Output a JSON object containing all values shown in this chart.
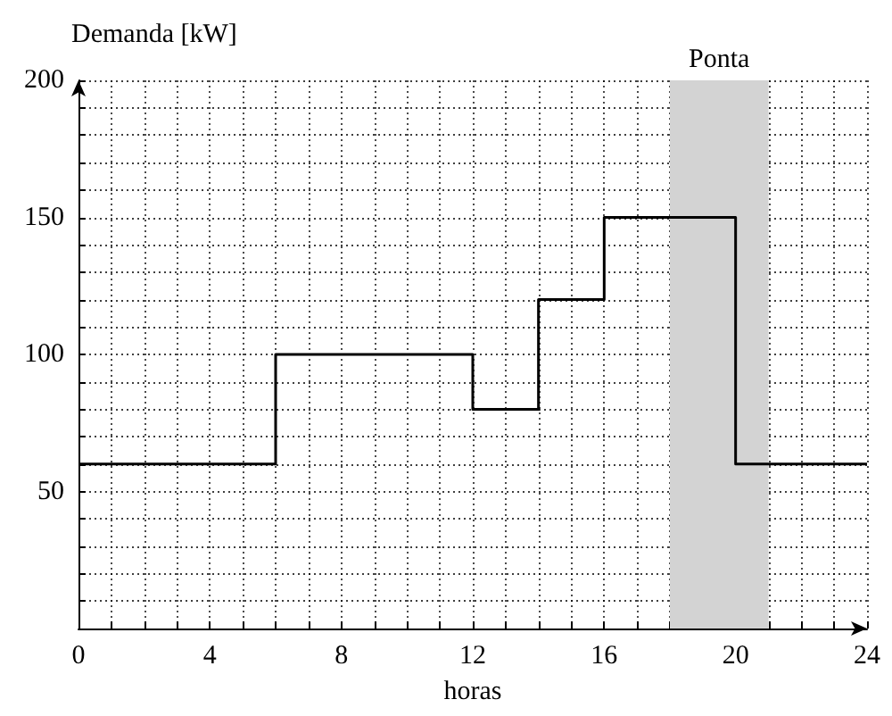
{
  "chart_data": {
    "type": "step",
    "xlabel": "horas",
    "ylabel": "Demanda [kW]",
    "x": [
      0,
      6,
      12,
      14,
      16,
      20,
      24
    ],
    "values": [
      60,
      100,
      80,
      120,
      150,
      60,
      60
    ],
    "color": "#000000",
    "xlim": [
      0,
      24
    ],
    "ylim": [
      0,
      200
    ],
    "xticks": [
      0,
      {
        "value": 1,
        "label": null
      },
      {
        "value": 2,
        "label": null
      },
      {
        "value": 3,
        "label": null
      },
      4,
      {
        "value": 5,
        "label": null
      },
      {
        "value": 6,
        "label": null
      },
      {
        "value": 7,
        "label": null
      },
      8,
      {
        "value": 9,
        "label": null
      },
      {
        "value": 10,
        "label": null
      },
      {
        "value": 11,
        "label": null
      },
      12,
      {
        "value": 13,
        "label": null
      },
      {
        "value": 14,
        "label": null
      },
      {
        "value": 15,
        "label": null
      },
      16,
      {
        "value": 17,
        "label": null
      },
      {
        "value": 18,
        "label": null
      },
      {
        "value": 19,
        "label": null
      },
      20,
      {
        "value": 21,
        "label": null
      },
      {
        "value": 22,
        "label": null
      },
      {
        "value": 23,
        "label": null
      },
      24
    ],
    "yticks": [
      {
        "value": 10,
        "label": null
      },
      {
        "value": 20,
        "label": null
      },
      {
        "value": 30,
        "label": null
      },
      {
        "value": 40,
        "label": null
      },
      50,
      {
        "value": 60,
        "label": null
      },
      {
        "value": 70,
        "label": null
      },
      {
        "value": 80,
        "label": null
      },
      {
        "value": 90,
        "label": null
      },
      100,
      {
        "value": 110,
        "label": null
      },
      {
        "value": 120,
        "label": null
      },
      {
        "value": 130,
        "label": null
      },
      {
        "value": 140,
        "label": null
      },
      150,
      {
        "value": 160,
        "label": null
      },
      {
        "value": 170,
        "label": null
      },
      {
        "value": 180,
        "label": null
      },
      {
        "value": 190,
        "label": null
      },
      200
    ],
    "bands": [
      {
        "axis": "x",
        "from": 18,
        "to": 21,
        "label": "Ponta",
        "color": "#d3d3d3"
      }
    ],
    "grid": true,
    "line_style": "solid"
  }
}
